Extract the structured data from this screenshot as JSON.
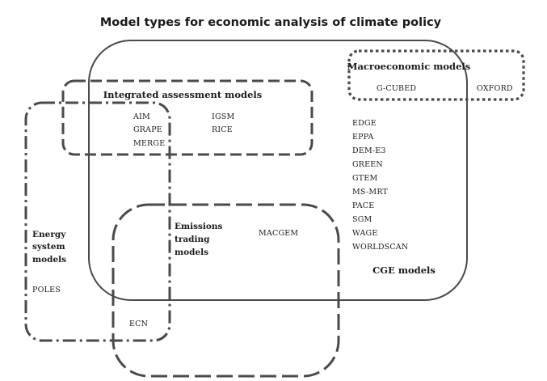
{
  "title": "Model types for economic analysis of climate policy",
  "groups": {
    "cge": {
      "label": "CGE models",
      "models": [
        "EDGE",
        "EPPA",
        "DEM-E3",
        "GREEN",
        "GTEM",
        "MS-MRT",
        "PACE",
        "SGM",
        "WAGE",
        "WORLDSCAN"
      ]
    },
    "macroeconomic": {
      "label": "Macroeconomic models",
      "models": [
        "G-CUBED",
        "OXFORD"
      ]
    },
    "integrated_assessment": {
      "label": "Integrated assessment models",
      "models": [
        "AIM",
        "GRAPE",
        "MERGE",
        "IGSM",
        "RICE"
      ]
    },
    "energy_system": {
      "label_lines": [
        "Energy",
        "system",
        "models"
      ],
      "models": [
        "POLES"
      ]
    },
    "emissions_trading": {
      "label_lines": [
        "Emissions",
        "trading",
        "models"
      ],
      "models": [
        "MACGEM"
      ]
    },
    "overlap": {
      "models": [
        "ECN"
      ]
    }
  }
}
